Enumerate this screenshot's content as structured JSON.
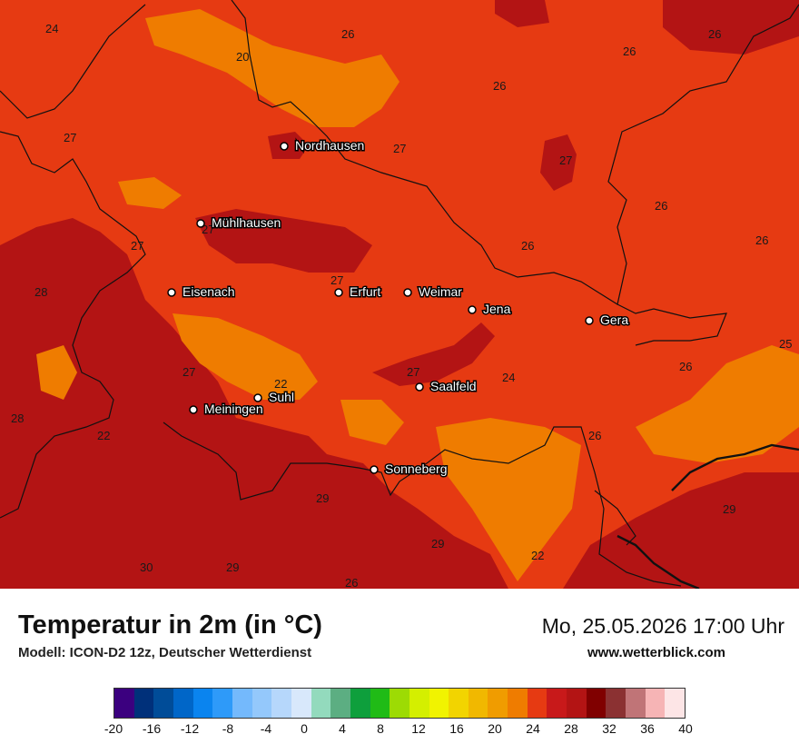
{
  "map": {
    "cities": [
      {
        "name": "Nordhausen"
      },
      {
        "name": "Mühlhausen"
      },
      {
        "name": "Eisenach"
      },
      {
        "name": "Erfurt"
      },
      {
        "name": "Weimar"
      },
      {
        "name": "Jena"
      },
      {
        "name": "Gera"
      },
      {
        "name": "Saalfeld"
      },
      {
        "name": "Suhl"
      },
      {
        "name": "Meiningen"
      },
      {
        "name": "Sonneberg"
      }
    ],
    "values": [
      "24",
      "26",
      "26",
      "20",
      "26",
      "26",
      "27",
      "27",
      "27",
      "26",
      "26",
      "27",
      "27",
      "26",
      "28",
      "27",
      "27",
      "22",
      "27",
      "24",
      "28",
      "25",
      "22",
      "26",
      "26",
      "29",
      "29",
      "29",
      "30",
      "29",
      "26",
      "22"
    ]
  },
  "footer": {
    "title": "Temperatur in 2m (in °C)",
    "subtitle": "Modell: ICON-D2 12z, Deutscher Wetterdienst",
    "datetime": "Mo, 25.05.2026 17:00 Uhr",
    "website": "www.wetterblick.com"
  },
  "legend": {
    "colors": [
      "#3b007f",
      "#00307a",
      "#004c98",
      "#0066c8",
      "#0a84ef",
      "#2e9af9",
      "#74b9fc",
      "#94c8fb",
      "#b6d7fb",
      "#d8e8fb",
      "#93dabd",
      "#5cae82",
      "#0e9f3c",
      "#20bb16",
      "#9ddb04",
      "#d4ef00",
      "#f1f300",
      "#f2d400",
      "#f1b800",
      "#f09c00",
      "#ef7c00",
      "#e63a12",
      "#c8191a",
      "#b31414",
      "#800000",
      "#8b3132",
      "#c07477",
      "#f6b4b5",
      "#fde5e6"
    ],
    "ticks": [
      "-20",
      "-16",
      "-12",
      "-8",
      "-4",
      "0",
      "4",
      "8",
      "12",
      "16",
      "20",
      "24",
      "28",
      "32",
      "36",
      "40"
    ]
  }
}
